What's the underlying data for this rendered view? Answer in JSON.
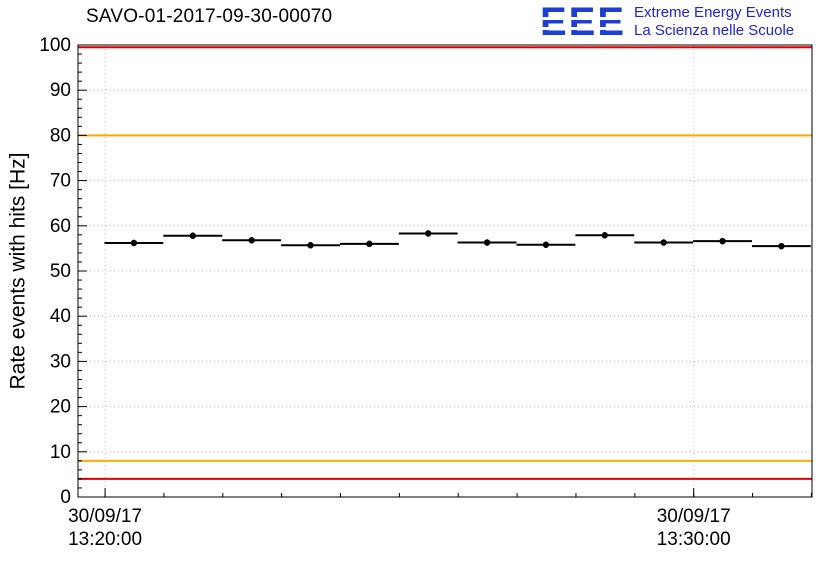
{
  "header": {
    "title": "SAVO-01-2017-09-30-00070",
    "logo": {
      "text": "EEE",
      "line1": "Extreme Energy Events",
      "line2": "La Scienza nelle Scuole",
      "eee_color": "#1c3fd4",
      "text_color": "#2121dd"
    }
  },
  "chart_data": {
    "type": "scatter",
    "title": "SAVO-01-2017-09-30-00070",
    "xlabel": "",
    "ylabel": "Rate events with hits [Hz]",
    "ylim": [
      0,
      100
    ],
    "yticks": [
      0,
      10,
      20,
      30,
      40,
      50,
      60,
      70,
      80,
      90,
      100
    ],
    "xlim": [
      0,
      12.47
    ],
    "x_unit": "minutes",
    "xticks": [
      {
        "x": 0.46,
        "label": [
          "30/09/17",
          "13:20:00"
        ]
      },
      {
        "x": 10.46,
        "label": [
          "30/09/17",
          "13:30:00"
        ]
      }
    ],
    "x_minor_step": 1,
    "grid": true,
    "hlines": [
      {
        "y": 99.5,
        "color": "#e00000",
        "name": "upper-alarm"
      },
      {
        "y": 80.0,
        "color": "#ffaa00",
        "name": "upper-warning"
      },
      {
        "y": 8.0,
        "color": "#ffaa00",
        "name": "lower-warning"
      },
      {
        "y": 4.0,
        "color": "#e00000",
        "name": "lower-alarm"
      }
    ],
    "series": [
      {
        "name": "rate-events-with-hits",
        "marker": "circle",
        "color": "#000000",
        "xerr": 0.5,
        "yerr": 0.7,
        "x": [
          0.95,
          1.95,
          2.95,
          3.95,
          4.95,
          5.95,
          6.95,
          7.95,
          8.95,
          9.95,
          10.95,
          11.95
        ],
        "y": [
          56.2,
          57.8,
          56.8,
          55.7,
          56.0,
          58.3,
          56.3,
          55.8,
          57.9,
          56.3,
          56.6,
          55.5
        ]
      }
    ]
  }
}
